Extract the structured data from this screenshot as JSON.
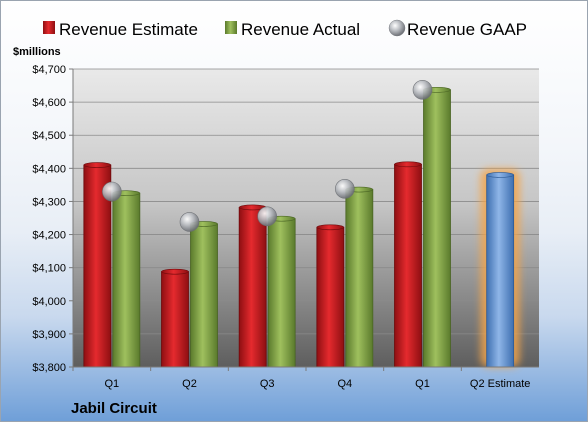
{
  "chart_data": {
    "type": "bar",
    "company": "Jabil Circuit",
    "ylabel": "$millions",
    "ylim": [
      3800,
      4700
    ],
    "yticks": [
      3800,
      3900,
      4000,
      4100,
      4200,
      4300,
      4400,
      4500,
      4600,
      4700
    ],
    "ytick_labels": [
      "$3,800",
      "$3,900",
      "$4,000",
      "$4,100",
      "$4,200",
      "$4,300",
      "$4,400",
      "$4,500",
      "$4,600",
      "$4,700"
    ],
    "categories": [
      "Q1",
      "Q2",
      "Q3",
      "Q4",
      "Q1",
      "Q2 Estimate"
    ],
    "grid": true,
    "legend_position": "top",
    "series": [
      {
        "name": "Revenue Estimate",
        "kind": "bar",
        "color": "#c0161b",
        "values": [
          4410,
          4088,
          4282,
          4222,
          4412,
          null
        ]
      },
      {
        "name": "Revenue Actual",
        "kind": "bar",
        "color": "#7ea043",
        "values": [
          4325,
          4232,
          4248,
          4336,
          4637,
          null
        ]
      },
      {
        "name": "Revenue GAAP",
        "kind": "marker",
        "color": "#b0b4ba",
        "values": [
          4330,
          4238,
          4255,
          4338,
          4637,
          null
        ]
      },
      {
        "name": "",
        "kind": "bar",
        "color": "#5b8fd0",
        "highlight": "#f5a54a",
        "values": [
          null,
          null,
          null,
          null,
          null,
          4380
        ]
      }
    ]
  }
}
